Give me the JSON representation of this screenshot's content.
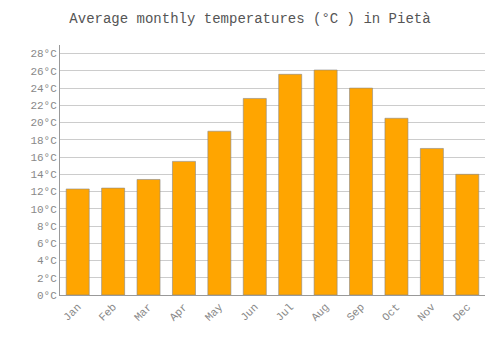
{
  "chart_data": {
    "type": "bar",
    "title": "Average monthly temperatures (°C ) in Pietà",
    "categories": [
      "Jan",
      "Feb",
      "Mar",
      "Apr",
      "May",
      "Jun",
      "Jul",
      "Aug",
      "Sep",
      "Oct",
      "Nov",
      "Dec"
    ],
    "values": [
      12.3,
      12.4,
      13.4,
      15.5,
      19.0,
      22.8,
      25.6,
      26.1,
      24.0,
      20.5,
      17.0,
      14.0
    ],
    "color": "#FFA500",
    "ylim": [
      0,
      29
    ],
    "yticks": [
      {
        "value": 0,
        "label": "0°C"
      },
      {
        "value": 2,
        "label": "2°C"
      },
      {
        "value": 4,
        "label": "4°C"
      },
      {
        "value": 6,
        "label": "6°C"
      },
      {
        "value": 8,
        "label": "8°C"
      },
      {
        "value": 10,
        "label": "10°C"
      },
      {
        "value": 12,
        "label": "12°C"
      },
      {
        "value": 14,
        "label": "14°C"
      },
      {
        "value": 16,
        "label": "16°C"
      },
      {
        "value": 18,
        "label": "18°C"
      },
      {
        "value": 20,
        "label": "20°C"
      },
      {
        "value": 22,
        "label": "22°C"
      },
      {
        "value": 24,
        "label": "24°C"
      },
      {
        "value": 26,
        "label": "26°C"
      },
      {
        "value": 28,
        "label": "28°C"
      }
    ],
    "grid": true
  }
}
